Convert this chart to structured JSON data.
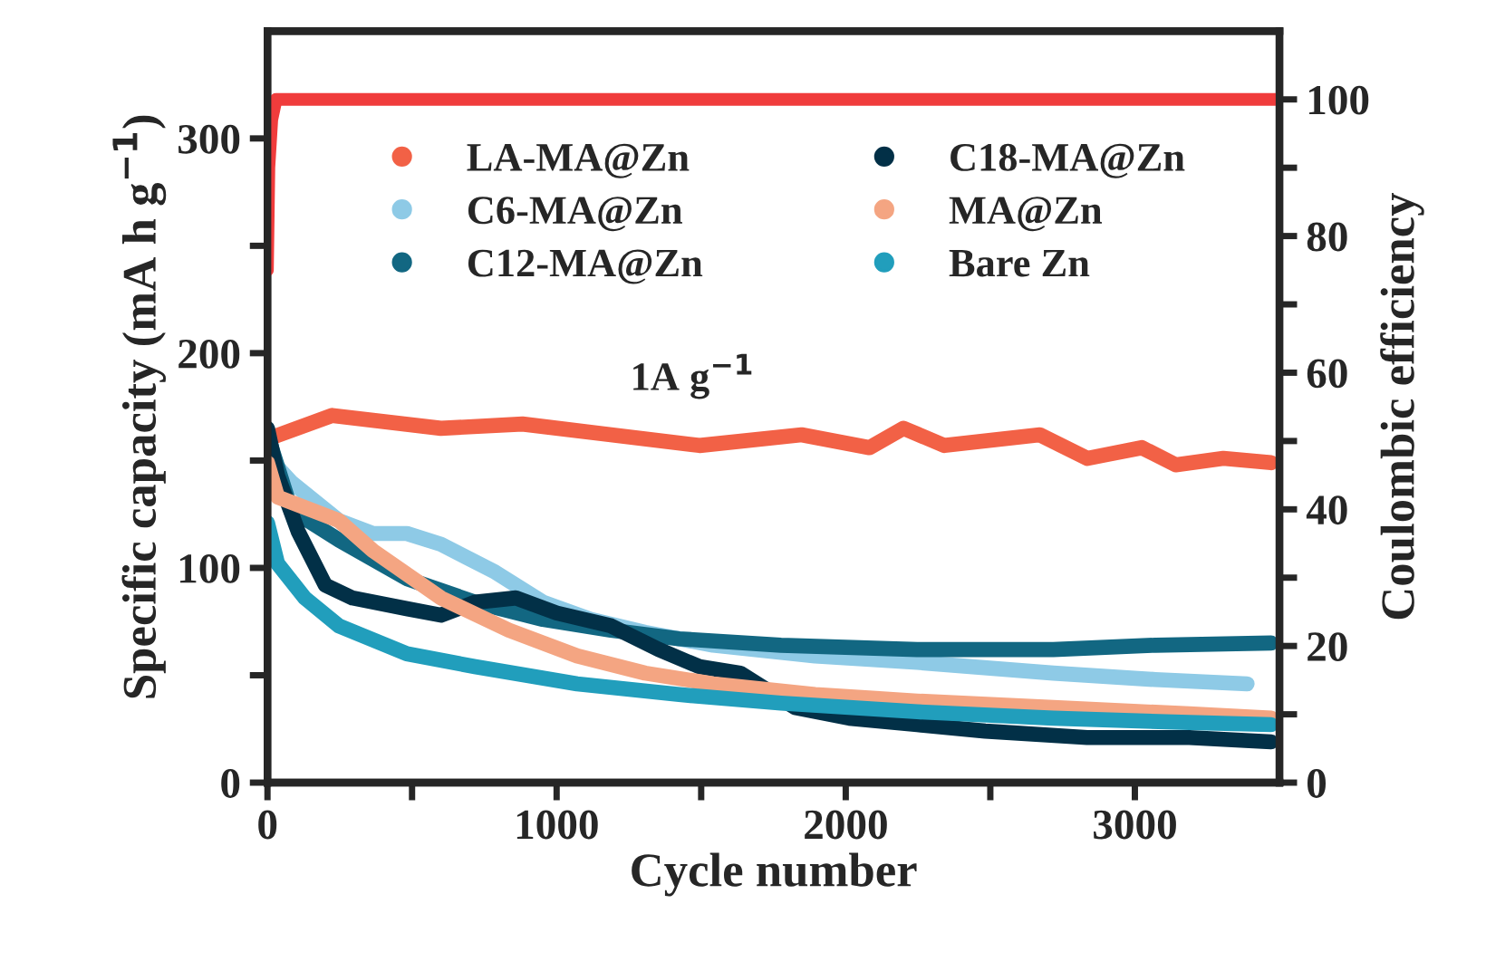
{
  "chart_data": {
    "type": "line",
    "xlabel": "Cycle number",
    "ylabel": "Specific capacity (mA h g$^{−1}$)",
    "y2label": "Coulombic efficiency",
    "annotations": [
      "1A g$^{−1}$"
    ],
    "xlim": [
      0,
      3500
    ],
    "ylim": [
      0,
      350
    ],
    "y2lim": [
      0,
      110
    ],
    "xticks": [
      0,
      {
        "value": 500,
        "label": null
      },
      1000,
      {
        "value": 1500,
        "label": null
      },
      2000,
      {
        "value": 2500,
        "label": null
      },
      3000
    ],
    "yticks": [
      0,
      {
        "value": 50,
        "label": null
      },
      100,
      {
        "value": 150,
        "label": null
      },
      200,
      {
        "value": 250,
        "label": null
      },
      300
    ],
    "y2ticks": [
      0,
      {
        "value": 10,
        "label": null
      },
      20,
      {
        "value": 30,
        "label": null
      },
      40,
      {
        "value": 50,
        "label": null
      },
      60,
      {
        "value": 70,
        "label": null
      },
      80,
      {
        "value": 90,
        "label": null
      },
      100
    ],
    "grid": false,
    "legend": "top",
    "marker": "none",
    "series": [
      {
        "name": "LA-MA@Zn",
        "color": "#f26146",
        "x": [
          0,
          224,
          600,
          882,
          1188,
          1494,
          1847,
          2082,
          2200,
          2341,
          2671,
          2835,
          3024,
          3141,
          3306,
          3471
        ],
        "values": [
          160,
          171,
          165,
          167,
          162,
          157,
          162,
          156,
          165,
          157,
          162,
          151,
          156,
          148,
          151,
          149
        ]
      },
      {
        "name": "C6-MA@Zn",
        "color": "#8ecae6",
        "x": [
          0,
          82,
          247,
          365,
          482,
          600,
          788,
          953,
          1118,
          1306,
          1541,
          1894,
          2247,
          2718,
          3071,
          3388
        ],
        "values": [
          152,
          140,
          122,
          116,
          116,
          111,
          98,
          84,
          76,
          70,
          64,
          59,
          56,
          51,
          48,
          46
        ]
      },
      {
        "name": "C12-MA@Zn",
        "color": "#126782",
        "x": [
          0,
          82,
          247,
          482,
          718,
          953,
          1188,
          1424,
          1776,
          2247,
          2718,
          3071,
          3471
        ],
        "values": [
          162,
          127,
          113,
          95,
          84,
          76,
          71,
          67,
          64,
          62,
          62,
          64,
          65
        ]
      },
      {
        "name": "C18-MA@Zn",
        "color": "#023047",
        "x": [
          0,
          35,
          106,
          200,
          294,
          482,
          600,
          718,
          859,
          1000,
          1188,
          1353,
          1494,
          1635,
          1824,
          2012,
          2247,
          2482,
          2835,
          3188,
          3471
        ],
        "values": [
          165,
          143,
          117,
          92,
          86,
          81,
          78,
          84,
          86,
          79,
          73,
          62,
          54,
          51,
          35,
          30,
          27,
          24,
          21,
          21,
          19
        ]
      },
      {
        "name": "MA@Zn",
        "color": "#f4a582",
        "x": [
          0,
          35,
          247,
          365,
          600,
          835,
          1071,
          1306,
          1541,
          1894,
          2247,
          2718,
          3188,
          3471
        ],
        "values": [
          149,
          133,
          122,
          108,
          86,
          71,
          59,
          51,
          46,
          41,
          38,
          35,
          32,
          30
        ]
      },
      {
        "name": "Bare Zn",
        "color": "#219ebc",
        "x": [
          0,
          35,
          129,
          247,
          482,
          718,
          1071,
          1424,
          1776,
          2247,
          2718,
          3188,
          3471
        ],
        "values": [
          121,
          102,
          86,
          73,
          60,
          54,
          46,
          41,
          37,
          33,
          30,
          28,
          27
        ]
      },
      {
        "color": "#f03c3c",
        "axis": "y2",
        "x": [
          0,
          5,
          15,
          30,
          500,
          1000,
          1500,
          2000,
          2500,
          3000,
          3500
        ],
        "values": [
          75,
          90,
          97,
          100,
          100,
          100,
          100,
          100,
          100,
          100,
          100
        ]
      }
    ]
  }
}
